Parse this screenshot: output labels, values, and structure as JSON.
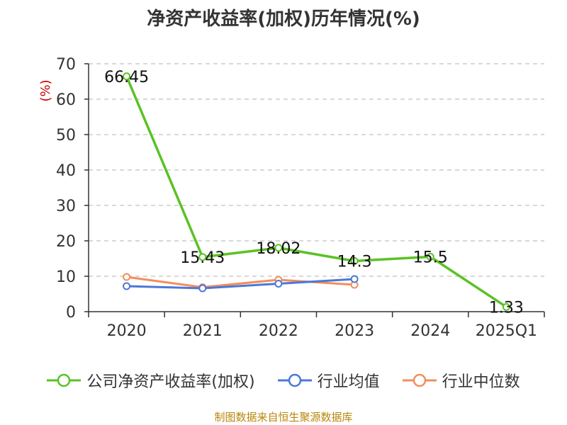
{
  "title": "净资产收益率(加权)历年情况(%)",
  "source_note": "制图数据来自恒生聚源数据库",
  "colors": {
    "company": "#5bc224",
    "industry_avg": "#4b78d6",
    "industry_median": "#f28e5c",
    "grid": "#cccccc",
    "axis": "#333333",
    "ylabel": "#cc0000",
    "source": "#b8860b"
  },
  "legend": [
    {
      "key": "company",
      "label": "公司净资产收益率(加权)"
    },
    {
      "key": "industry_avg",
      "label": "行业均值"
    },
    {
      "key": "industry_median",
      "label": "行业中位数"
    }
  ],
  "chart_data": {
    "type": "line",
    "title": "净资产收益率(加权)历年情况(%)",
    "xlabel": "",
    "ylabel": "(%)",
    "categories": [
      "2020",
      "2021",
      "2022",
      "2023",
      "2024",
      "2025Q1"
    ],
    "ylim": [
      0,
      70
    ],
    "yticks": [
      0,
      10,
      20,
      30,
      40,
      50,
      60,
      70
    ],
    "grid": true,
    "legend_position": "bottom",
    "series": [
      {
        "key": "company",
        "name": "公司净资产收益率(加权)",
        "values": [
          66.45,
          15.43,
          18.02,
          14.3,
          15.5,
          1.33
        ],
        "labels": [
          "66.45",
          "15.43",
          "18.02",
          "14.3",
          "15.5",
          "1.33"
        ]
      },
      {
        "key": "industry_avg",
        "name": "行业均值",
        "values": [
          7.2,
          6.6,
          7.9,
          9.2,
          null,
          null
        ]
      },
      {
        "key": "industry_median",
        "name": "行业中位数",
        "values": [
          9.8,
          6.9,
          9.0,
          7.6,
          null,
          null
        ]
      }
    ]
  }
}
